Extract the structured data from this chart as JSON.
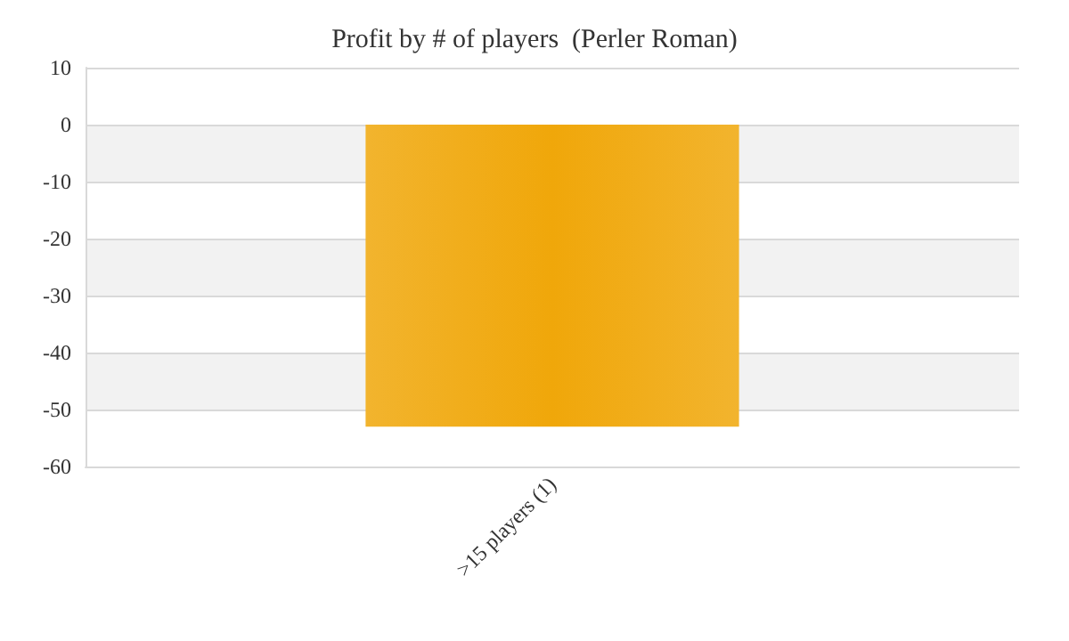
{
  "chart_data": {
    "type": "bar",
    "title": "Profit by # of players  (Perler Roman)",
    "categories": [
      ">15 players (1)"
    ],
    "series": [
      {
        "color": "#f0a70a",
        "values": [
          -53
        ]
      }
    ],
    "ylim": [
      -60,
      10
    ],
    "yticks": [
      -60,
      -50,
      -40,
      -30,
      -20,
      -10,
      0,
      10
    ],
    "grid": "y"
  }
}
